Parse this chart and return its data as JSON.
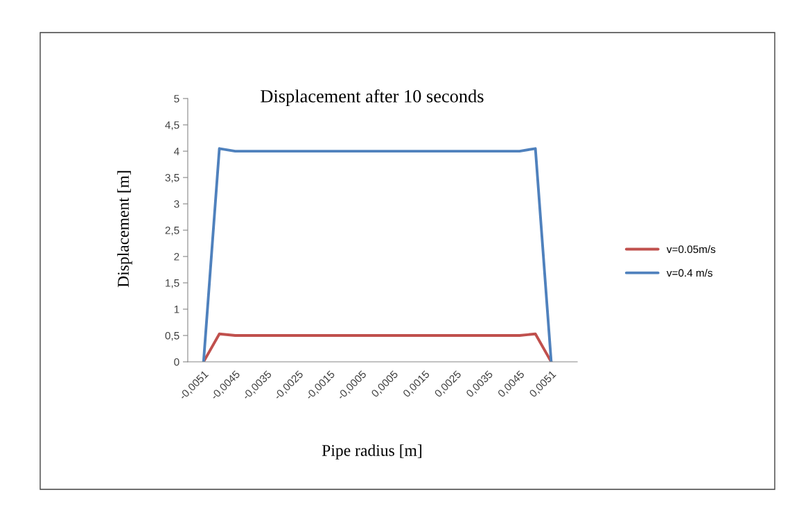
{
  "chart_data": {
    "type": "line",
    "title": "Displacement after 10 seconds",
    "xlabel": "Pipe radius [m]",
    "ylabel": "Displacement [m]",
    "categories": [
      "-0,0051",
      null,
      "-0,0045",
      null,
      "-0,0035",
      null,
      "-0,0025",
      null,
      "-0,0015",
      null,
      "-0,0005",
      null,
      "0,0005",
      null,
      "0,0015",
      null,
      "0,0025",
      null,
      "0,0035",
      null,
      "0,0045",
      null,
      "0,0051"
    ],
    "series": [
      {
        "name": "v=0.05m/s",
        "color": "#c0504d",
        "values": [
          0,
          0.53,
          0.5,
          0.5,
          0.5,
          0.5,
          0.5,
          0.5,
          0.5,
          0.5,
          0.5,
          0.5,
          0.5,
          0.5,
          0.5,
          0.5,
          0.5,
          0.5,
          0.5,
          0.5,
          0.5,
          0.53,
          0
        ]
      },
      {
        "name": "v=0.4 m/s",
        "color": "#4f81bd",
        "values": [
          0,
          4.05,
          4.0,
          4.0,
          4.0,
          4.0,
          4.0,
          4.0,
          4.0,
          4.0,
          4.0,
          4.0,
          4.0,
          4.0,
          4.0,
          4.0,
          4.0,
          4.0,
          4.0,
          4.0,
          4.0,
          4.05,
          0
        ]
      }
    ],
    "ylim": [
      0,
      5
    ],
    "yticks": [
      0,
      {
        "value": 0.5,
        "label": "0,5"
      },
      1,
      {
        "value": 1.5,
        "label": "1,5"
      },
      2,
      {
        "value": 2.5,
        "label": "2,5"
      },
      3,
      {
        "value": 3.5,
        "label": "3,5"
      },
      4,
      {
        "value": 4.5,
        "label": "4,5"
      },
      5
    ],
    "grid": false,
    "legend": "right",
    "marker": "none",
    "line_style": "solid"
  }
}
